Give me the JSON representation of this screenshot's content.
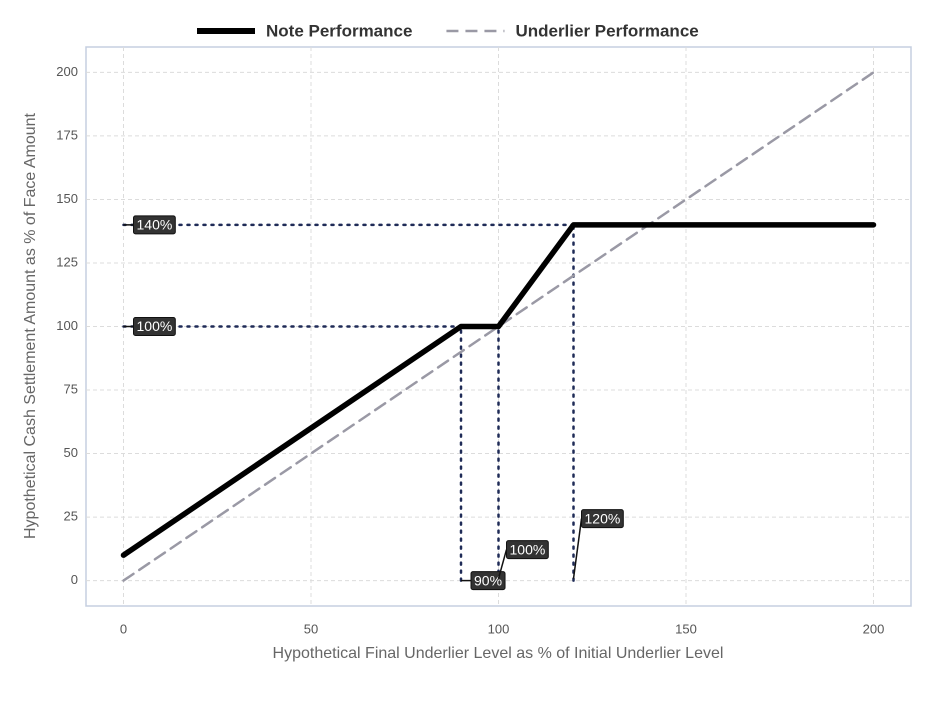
{
  "chart_data": {
    "type": "line",
    "x_label": "Hypothetical Final Underlier Level as % of Initial Underlier Level",
    "y_label": "Hypothetical Cash Settlement Amount as % of Face Amount",
    "xlim": [
      -10,
      210
    ],
    "ylim": [
      -10,
      210
    ],
    "xticks": [
      0,
      50,
      100,
      150,
      200
    ],
    "yticks": [
      0,
      25,
      50,
      75,
      100,
      125,
      150,
      175,
      200
    ],
    "grid": true,
    "legend": "top",
    "series": [
      {
        "name": "Note Performance",
        "color": "#000000",
        "style": "solid",
        "x": [
          0,
          90,
          100,
          120,
          200
        ],
        "values": [
          10,
          100,
          100,
          140,
          140
        ]
      },
      {
        "name": "Underlier Performance",
        "color": "#9a99a5",
        "style": "dashed",
        "x": [
          0,
          200
        ],
        "values": [
          0,
          200
        ]
      }
    ],
    "annotations": [
      {
        "axis": "y",
        "x": 120,
        "y": 140,
        "label": "140%"
      },
      {
        "axis": "y",
        "x": 90,
        "y": 100,
        "label": "100%"
      },
      {
        "axis": "x",
        "x": 90,
        "y": 100,
        "label": "90%"
      },
      {
        "axis": "x",
        "x": 100,
        "y": 100,
        "label": "100%"
      },
      {
        "axis": "x",
        "x": 120,
        "y": 140,
        "label": "120%"
      }
    ],
    "annotation_color": "#1f2b57"
  }
}
